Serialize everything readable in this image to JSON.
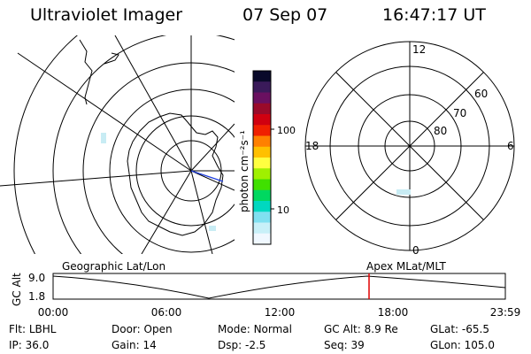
{
  "header": {
    "instrument": "Ultraviolet Imager",
    "date": "07 Sep 07",
    "time": "16:47:17 UT"
  },
  "colorbar": {
    "unit_label": "photon cm⁻²s⁻¹",
    "ticks": [
      "100",
      "10"
    ],
    "colors": [
      "#0a0a2a",
      "#3a1a5a",
      "#6a1060",
      "#9a0a2a",
      "#d00010",
      "#f02000",
      "#ff8000",
      "#ffc000",
      "#ffff40",
      "#a0f000",
      "#40e000",
      "#00d860",
      "#00d8c0",
      "#80e0f0",
      "#c8f0f8",
      "#f0f8ff"
    ]
  },
  "right_plot": {
    "mlt_labels": {
      "top": "12",
      "left": "18",
      "right": "6",
      "bottom": "0"
    },
    "lat_labels": [
      "60",
      "70",
      "80"
    ]
  },
  "timeline": {
    "left_label": "Geographic Lat/Lon",
    "right_label": "Apex MLat/MLT",
    "axis_title": "GC Alt",
    "y_ticks": [
      "9.0",
      "1.8"
    ],
    "x_ticks": [
      "00:00",
      "06:00",
      "12:00",
      "18:00",
      "23:59"
    ],
    "marker_time": "16:47",
    "marker_color": "#e00000"
  },
  "status": {
    "row1": [
      {
        "label": "Flt:",
        "value": "LBHL"
      },
      {
        "label": "Door:",
        "value": "Open"
      },
      {
        "label": "Mode:",
        "value": "Normal"
      },
      {
        "label": "GC Alt:",
        "value": "8.9 Re"
      },
      {
        "label": "GLat:",
        "value": "-65.5"
      }
    ],
    "row2": [
      {
        "label": "IP:",
        "value": "36.0"
      },
      {
        "label": "Gain:",
        "value": "14"
      },
      {
        "label": "Dsp:",
        "value": "-2.5"
      },
      {
        "label": "Seq:",
        "value": "39"
      },
      {
        "label": "GLon:",
        "value": "105.0"
      }
    ]
  }
}
